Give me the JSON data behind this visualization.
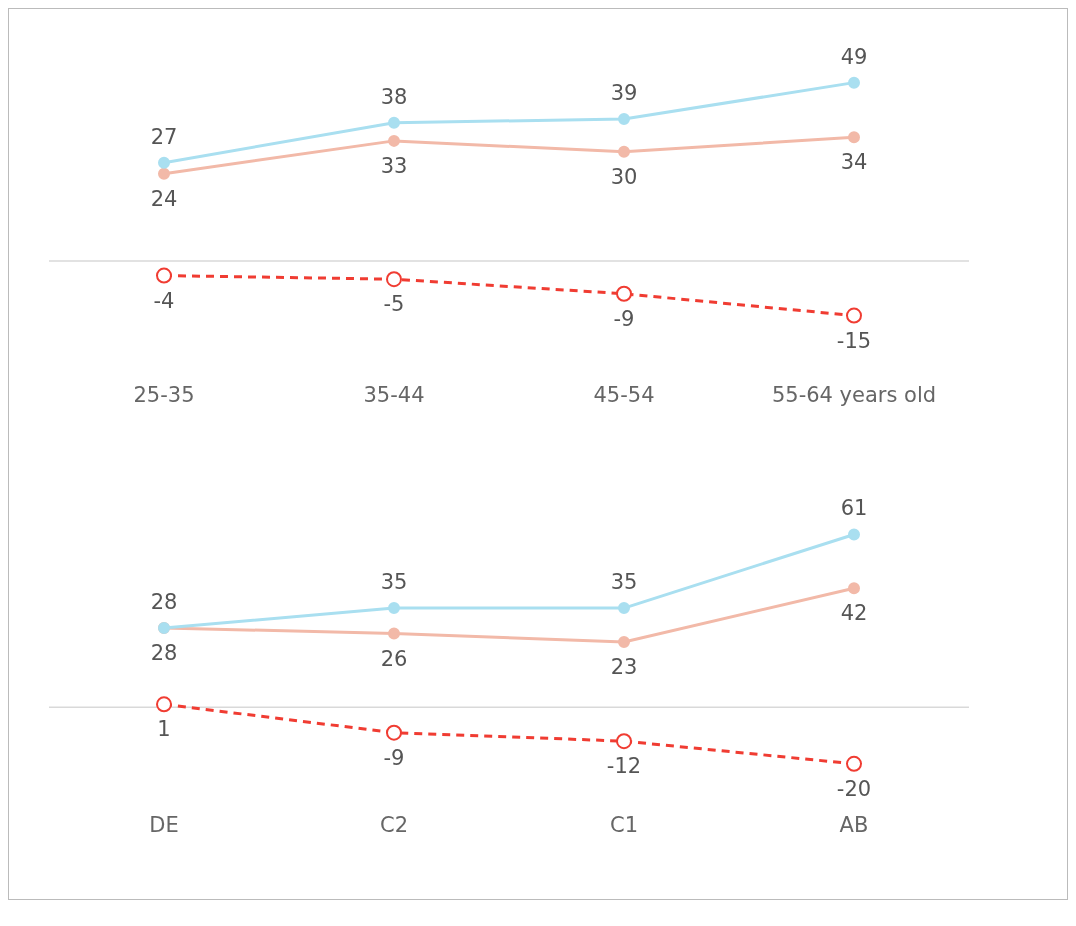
{
  "chart_data": [
    {
      "type": "line",
      "categories": [
        "25-35",
        "35-44",
        "45-54",
        "55-64 years old"
      ],
      "series": [
        {
          "color": "#a9dff0",
          "values": [
            27,
            38,
            39,
            49
          ]
        },
        {
          "color": "#f2b9a8",
          "values": [
            24,
            33,
            30,
            34
          ]
        },
        {
          "color": "#f03c32",
          "values": [
            -4,
            -5,
            -9,
            -15
          ],
          "line_style": "dashed"
        }
      ],
      "data_labels": true,
      "grid": false,
      "legend": false,
      "tick_labels": "x",
      "marker": "circle",
      "ref_lines": [
        {
          "axis": "y",
          "value": 0,
          "color": "#d9d9d9"
        }
      ]
    },
    {
      "type": "line",
      "categories": [
        "DE",
        "C2",
        "C1",
        "AB"
      ],
      "series": [
        {
          "color": "#a9dff0",
          "values": [
            28,
            35,
            35,
            61
          ]
        },
        {
          "color": "#f2b9a8",
          "values": [
            28,
            26,
            23,
            42
          ]
        },
        {
          "color": "#f03c32",
          "values": [
            1,
            -9,
            -12,
            -20
          ],
          "line_style": "dashed"
        }
      ],
      "data_labels": true,
      "grid": false,
      "legend": false,
      "tick_labels": "x",
      "marker": "circle",
      "ref_lines": [
        {
          "axis": "y",
          "value": 0,
          "color": "#d9d9d9"
        }
      ]
    }
  ]
}
